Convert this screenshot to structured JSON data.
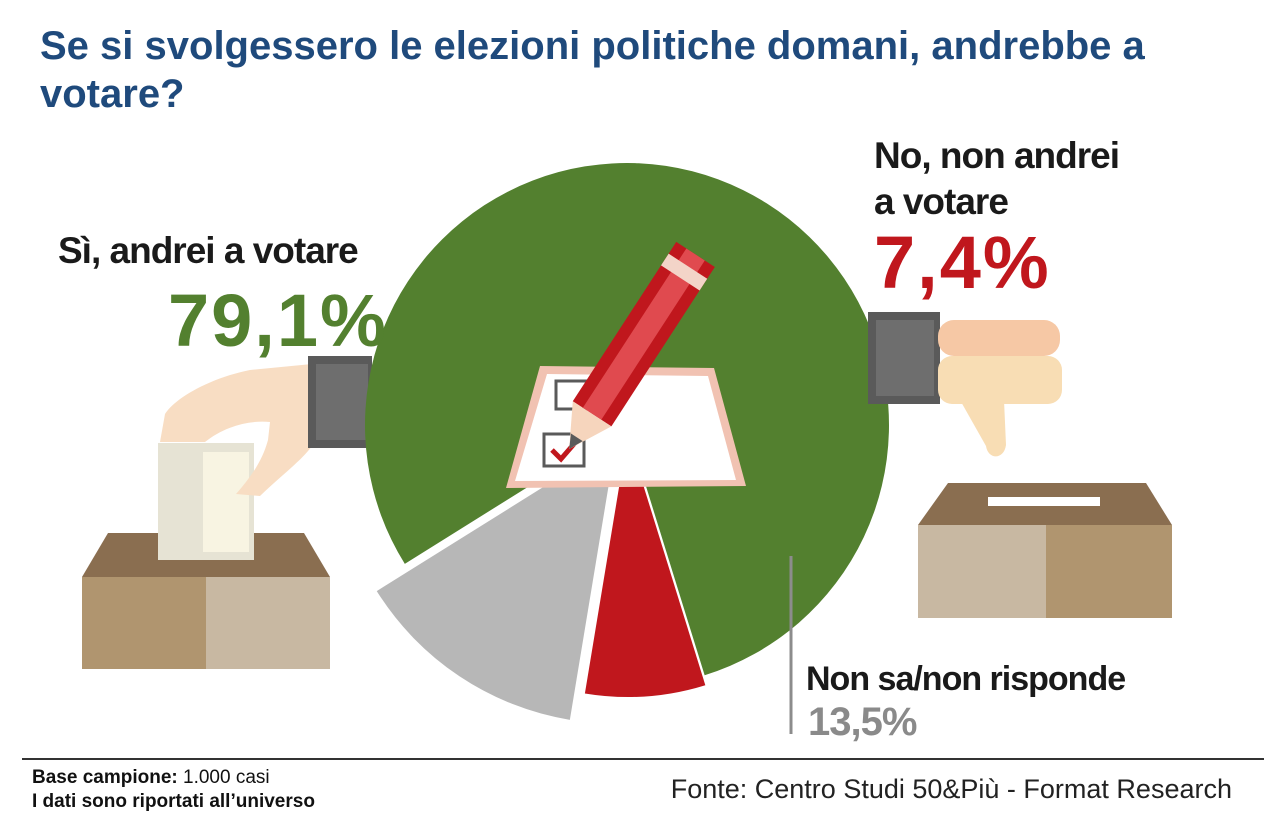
{
  "title": "Se si svolgessero le elezioni politiche domani, andrebbe a votare?",
  "chart_data": {
    "type": "pie",
    "slices": [
      {
        "label": "Sì, andrei a votare",
        "value": 79.1,
        "display": "79,1%",
        "color": "#53802f"
      },
      {
        "label": "No, non andrei a votare",
        "value": 7.4,
        "display": "7,4%",
        "color": "#c0171d"
      },
      {
        "label": "Non sa/non risponde",
        "value": 13.5,
        "display": "13,5%",
        "color": "#b7b7b7"
      }
    ]
  },
  "labels": {
    "si_label": "Sì, andrei a votare",
    "si_value": "79,1%",
    "no_label_line1": "No, non andrei",
    "no_label_line2": "a votare",
    "no_value": "7,4%",
    "ns_label": "Non sa/non risponde",
    "ns_value": "13,5%"
  },
  "footer": {
    "base_label": "Base campione:",
    "base_value": "1.000 casi",
    "note": "I dati sono riportati all’universo",
    "source": "Fonte: Centro Studi 50&Più - Format Research"
  }
}
